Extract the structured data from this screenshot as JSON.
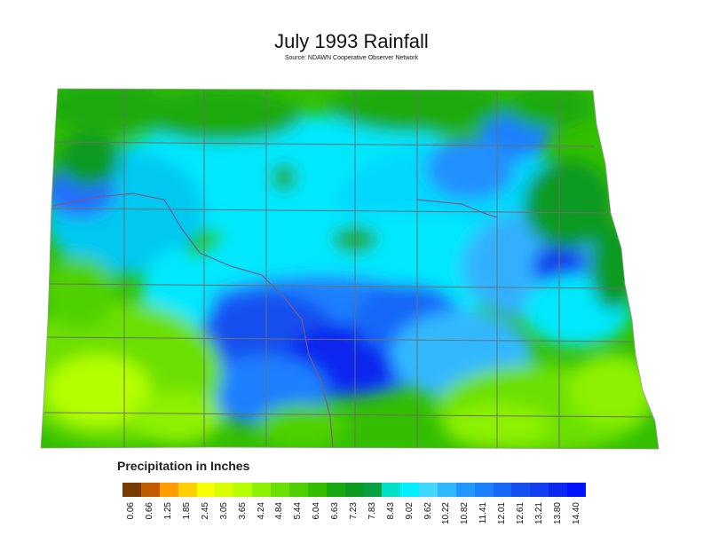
{
  "map": {
    "title": "July 1993 Rainfall",
    "subtitle": "Source: NDAWN Cooperative Observer Network"
  },
  "legend": {
    "title": "Precipitation in Inches",
    "ticks": [
      "0.06",
      "0.66",
      "1.25",
      "1.85",
      "2.45",
      "3.05",
      "3.65",
      "4.24",
      "4.84",
      "5.44",
      "6.04",
      "6.63",
      "7.23",
      "7.83",
      "8.43",
      "9.02",
      "9.62",
      "10.22",
      "10.82",
      "11.41",
      "12.01",
      "12.61",
      "13.21",
      "13.80",
      "14.40"
    ],
    "colors": [
      "#7a3b00",
      "#c25a00",
      "#ff9d00",
      "#ffd000",
      "#f7ff00",
      "#d8ff00",
      "#b4ff00",
      "#8cf000",
      "#6ae000",
      "#4fd000",
      "#33bf00",
      "#1aaa10",
      "#0c9a20",
      "#08a040",
      "#00e0c8",
      "#00f0ff",
      "#40d8ff",
      "#30b8ff",
      "#2098ff",
      "#1c80ff",
      "#1868f8",
      "#1450f0",
      "#1040f0",
      "#0a28f0",
      "#0014ff"
    ]
  },
  "colors": {
    "county_lines": "#6e6e6e",
    "river_lines": "#7a5a8a"
  }
}
